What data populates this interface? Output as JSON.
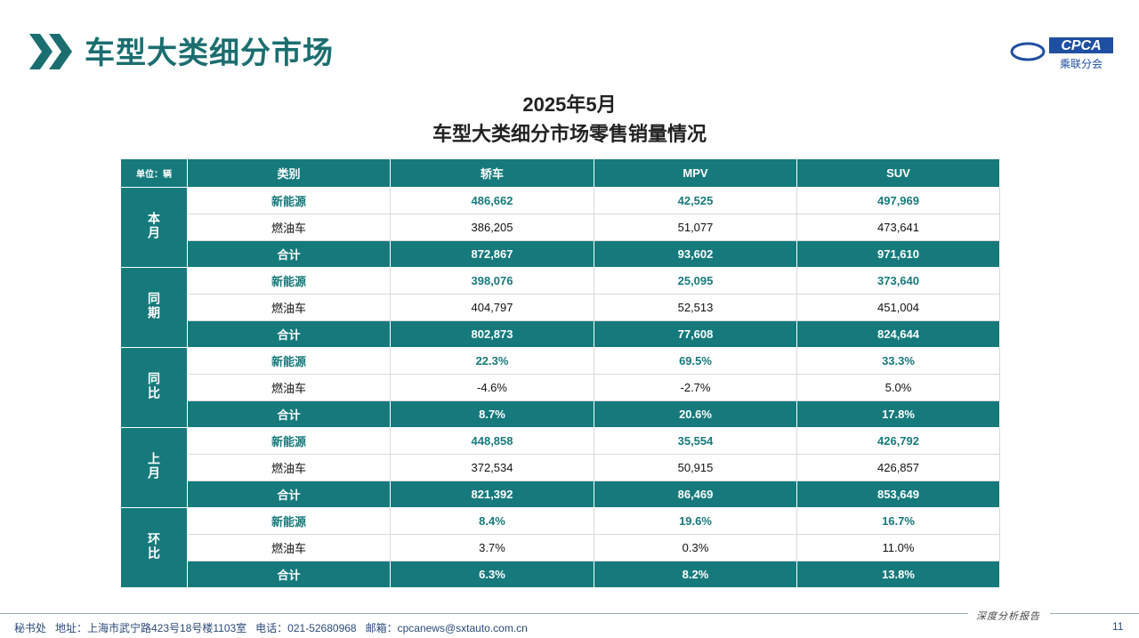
{
  "header": {
    "title": "车型大类细分市场",
    "logo_text": "CPCA",
    "logo_subtext": "乘联分会"
  },
  "table_title": {
    "line1": "2025年5月",
    "line2": "车型大类细分市场零售销量情况"
  },
  "table": {
    "unit": "单位：辆",
    "columns": [
      "类别",
      "轿车",
      "MPV",
      "SUV"
    ],
    "groups": [
      {
        "label": "本月",
        "rows": [
          {
            "category": "新能源",
            "values": [
              "486,662",
              "42,525",
              "497,969"
            ]
          },
          {
            "category": "燃油车",
            "values": [
              "386,205",
              "51,077",
              "473,641"
            ]
          },
          {
            "category": "合计",
            "values": [
              "872,867",
              "93,602",
              "971,610"
            ]
          }
        ]
      },
      {
        "label": "同期",
        "rows": [
          {
            "category": "新能源",
            "values": [
              "398,076",
              "25,095",
              "373,640"
            ]
          },
          {
            "category": "燃油车",
            "values": [
              "404,797",
              "52,513",
              "451,004"
            ]
          },
          {
            "category": "合计",
            "values": [
              "802,873",
              "77,608",
              "824,644"
            ]
          }
        ]
      },
      {
        "label": "同比",
        "rows": [
          {
            "category": "新能源",
            "values": [
              "22.3%",
              "69.5%",
              "33.3%"
            ]
          },
          {
            "category": "燃油车",
            "values": [
              "-4.6%",
              "-2.7%",
              "5.0%"
            ]
          },
          {
            "category": "合计",
            "values": [
              "8.7%",
              "20.6%",
              "17.8%"
            ]
          }
        ]
      },
      {
        "label": "上月",
        "rows": [
          {
            "category": "新能源",
            "values": [
              "448,858",
              "35,554",
              "426,792"
            ]
          },
          {
            "category": "燃油车",
            "values": [
              "372,534",
              "50,915",
              "426,857"
            ]
          },
          {
            "category": "合计",
            "values": [
              "821,392",
              "86,469",
              "853,649"
            ]
          }
        ]
      },
      {
        "label": "环比",
        "rows": [
          {
            "category": "新能源",
            "values": [
              "8.4%",
              "19.6%",
              "16.7%"
            ]
          },
          {
            "category": "燃油车",
            "values": [
              "3.7%",
              "0.3%",
              "11.0%"
            ]
          },
          {
            "category": "合计",
            "values": [
              "6.3%",
              "8.2%",
              "13.8%"
            ]
          }
        ]
      }
    ]
  },
  "footer": {
    "contact": "秘书处   地址：上海市武宁路423号18号楼1103室   电话：021-52680968   邮箱：cpcanews@sxtauto.com.cn",
    "tag": "深度分析报告",
    "page": "11"
  }
}
